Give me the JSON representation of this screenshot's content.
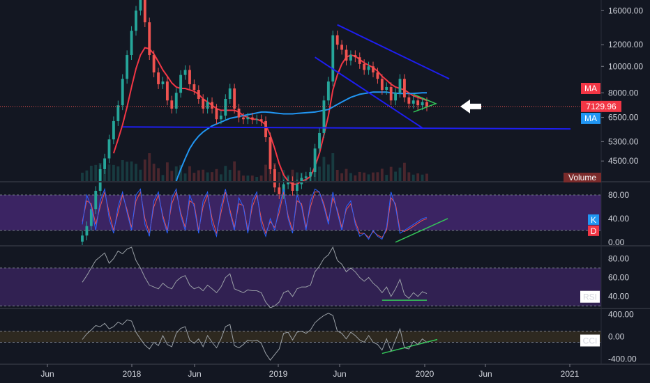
{
  "colors": {
    "background": "#131722",
    "up": "#26a69a",
    "down": "#ef5350",
    "ma_red": "#f23645",
    "ma_blue": "#2196f3",
    "trendline": "#1e1ef0",
    "support": "#1e1ef0",
    "triangle": "#34c759",
    "divergence": "#34c759",
    "stoch_k": "#2962ff",
    "stoch_d": "#ef5350",
    "band_purple": "#4a2a7a",
    "osc_line": "#9aa0a6",
    "price_line": "#ef5350",
    "arrow": "#ffffff"
  },
  "chart_data": {
    "type": "candlestick",
    "symbol_timeframe": "",
    "x_labels": [
      "Jun",
      "2018",
      "Jun",
      "2019",
      "Jun",
      "2020",
      "Jun",
      "2021"
    ],
    "price_axis": {
      "scale": "log",
      "ticks": [
        "16000.00",
        "12000.00",
        "10000.00",
        "8000.00",
        "6500.00",
        "5300.00",
        "4500.00"
      ],
      "ylim": [
        3800,
        17500
      ]
    },
    "price_labels": {
      "ma_top": "MA",
      "current_price": "7129.96",
      "ma_bottom": "MA",
      "volume": "Volume"
    },
    "current_price": 7129.96,
    "closes": [
      2400,
      2600,
      3000,
      3500,
      4200,
      4600,
      5400,
      6300,
      7200,
      9000,
      11000,
      13500,
      16000,
      17500,
      14500,
      11000,
      9500,
      8600,
      8800,
      7500,
      7000,
      8000,
      9300,
      9700,
      8600,
      8200,
      7600,
      7000,
      7400,
      7000,
      6400,
      6600,
      7600,
      8300,
      7000,
      6500,
      6400,
      6500,
      6400,
      6400,
      6300,
      5500,
      4200,
      3600,
      3400,
      3700,
      3800,
      3500,
      3700,
      3900,
      3950,
      4100,
      5000,
      5700,
      7500,
      8800,
      13000,
      12000,
      11500,
      10500,
      11000,
      10800,
      10200,
      9700,
      10000,
      9500,
      9000,
      8200,
      8400,
      7500,
      8000,
      9000,
      7700,
      7300,
      7500,
      7200,
      7400,
      7130
    ],
    "ma_fast": [
      null,
      null,
      null,
      null,
      null,
      null,
      null,
      4800,
      5400,
      6100,
      7100,
      8400,
      9800,
      11000,
      11700,
      11600,
      11100,
      10400,
      9700,
      9200,
      8700,
      8400,
      8300,
      8300,
      8200,
      8100,
      7900,
      7600,
      7400,
      7200,
      7000,
      6900,
      6900,
      6900,
      6900,
      6800,
      6600,
      6500,
      6400,
      6400,
      6300,
      6100,
      5600,
      5000,
      4400,
      4000,
      3800,
      3700,
      3700,
      3800,
      3850,
      3950,
      4300,
      4800,
      5600,
      6600,
      8200,
      9300,
      10200,
      10800,
      11000,
      10900,
      10600,
      10300,
      10100,
      9900,
      9600,
      9200,
      8900,
      8600,
      8400,
      8300,
      8200,
      8000,
      7800,
      7700,
      7600,
      7500
    ],
    "ma_slow": [
      null,
      null,
      null,
      null,
      null,
      null,
      null,
      null,
      null,
      null,
      null,
      null,
      null,
      null,
      null,
      null,
      null,
      null,
      null,
      null,
      null,
      3800,
      4200,
      4600,
      5000,
      5300,
      5550,
      5750,
      5900,
      6050,
      6150,
      6250,
      6350,
      6450,
      6500,
      6550,
      6600,
      6650,
      6700,
      6750,
      6800,
      6800,
      6780,
      6750,
      6720,
      6700,
      6700,
      6700,
      6720,
      6740,
      6760,
      6780,
      6800,
      6850,
      6900,
      6950,
      7100,
      7250,
      7400,
      7550,
      7700,
      7800,
      7900,
      7950,
      8000,
      8050,
      8050,
      8050,
      8050,
      8000,
      7980,
      7950,
      7950,
      7950,
      7960,
      7980,
      8000,
      8000
    ],
    "stochastic": {
      "axis_ticks": [
        "80.00",
        "40.00",
        "0.00"
      ],
      "labels": {
        "k": "K",
        "d": "D"
      },
      "band": [
        20,
        80
      ],
      "ylim": [
        -5,
        100
      ],
      "k": [
        30,
        80,
        60,
        20,
        70,
        90,
        40,
        15,
        60,
        85,
        50,
        20,
        80,
        90,
        30,
        10,
        70,
        85,
        40,
        15,
        75,
        90,
        45,
        20,
        80,
        60,
        15,
        70,
        85,
        30,
        10,
        60,
        90,
        50,
        20,
        75,
        60,
        15,
        70,
        85,
        30,
        10,
        40,
        20,
        60,
        90,
        40,
        15,
        80,
        60,
        20,
        70,
        90,
        85,
        60,
        30,
        85,
        50,
        20,
        60,
        70,
        30,
        10,
        15,
        5,
        20,
        10,
        5,
        25,
        85,
        60,
        15,
        20,
        25,
        30,
        35,
        40,
        42
      ],
      "d": [
        35,
        70,
        65,
        30,
        60,
        85,
        50,
        20,
        50,
        80,
        55,
        25,
        70,
        85,
        40,
        15,
        60,
        80,
        45,
        20,
        65,
        85,
        50,
        25,
        70,
        65,
        20,
        60,
        80,
        40,
        15,
        50,
        85,
        55,
        25,
        65,
        62,
        20,
        60,
        80,
        40,
        15,
        35,
        25,
        50,
        85,
        45,
        20,
        70,
        65,
        25,
        60,
        85,
        85,
        65,
        35,
        75,
        55,
        25,
        55,
        65,
        35,
        15,
        15,
        8,
        18,
        12,
        8,
        20,
        75,
        65,
        20,
        18,
        22,
        27,
        32,
        37,
        40
      ]
    },
    "rsi": {
      "axis_ticks": [
        "80.00",
        "60.00",
        "40.00"
      ],
      "label": "RSI",
      "band": [
        30,
        70
      ],
      "ylim": [
        28,
        92
      ],
      "values": [
        55,
        62,
        70,
        78,
        82,
        86,
        75,
        80,
        88,
        85,
        90,
        92,
        78,
        70,
        60,
        52,
        50,
        48,
        54,
        50,
        48,
        56,
        60,
        62,
        52,
        48,
        50,
        46,
        52,
        48,
        44,
        50,
        60,
        64,
        48,
        46,
        44,
        47,
        46,
        46,
        44,
        34,
        28,
        30,
        34,
        44,
        46,
        40,
        48,
        50,
        50,
        52,
        66,
        72,
        80,
        84,
        92,
        78,
        74,
        66,
        70,
        66,
        60,
        56,
        60,
        54,
        50,
        44,
        50,
        40,
        48,
        58,
        42,
        38,
        44,
        40,
        45,
        43
      ]
    },
    "cci": {
      "axis_ticks": [
        "400.00",
        "0.00",
        "-400.00"
      ],
      "label": "CCI",
      "band": [
        -100,
        100
      ],
      "ylim": [
        -480,
        480
      ],
      "values": [
        -50,
        50,
        120,
        200,
        180,
        240,
        140,
        180,
        260,
        220,
        300,
        280,
        80,
        -40,
        -150,
        -220,
        -100,
        -160,
        20,
        -140,
        -180,
        60,
        150,
        180,
        -60,
        -120,
        -40,
        -180,
        20,
        -100,
        -200,
        -40,
        180,
        220,
        -160,
        -200,
        -140,
        -60,
        -80,
        -60,
        -120,
        -300,
        -420,
        -320,
        -220,
        60,
        80,
        -60,
        80,
        100,
        60,
        120,
        250,
        320,
        380,
        420,
        380,
        100,
        60,
        -40,
        80,
        20,
        -60,
        -100,
        20,
        -100,
        -140,
        -240,
        -40,
        -260,
        -60,
        140,
        -200,
        -220,
        -80,
        -140,
        -40,
        -100
      ]
    }
  }
}
